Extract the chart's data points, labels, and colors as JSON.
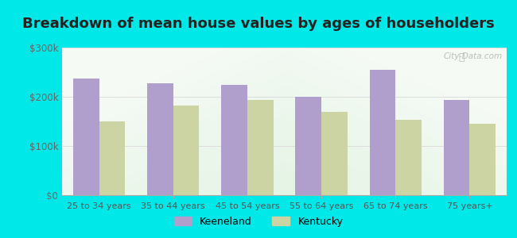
{
  "title": "Breakdown of mean house values by ages of householders",
  "categories": [
    "25 to 34 years",
    "35 to 44 years",
    "45 to 54 years",
    "55 to 64 years",
    "65 to 74 years",
    "75 years+"
  ],
  "keeneland_values": [
    237000,
    228000,
    224000,
    200000,
    255000,
    193000
  ],
  "kentucky_values": [
    150000,
    183000,
    194000,
    170000,
    153000,
    145000
  ],
  "keeneland_color": "#b09fcc",
  "kentucky_color": "#cdd4a4",
  "background_top": "#f0f5ee",
  "background_bottom": "#e8f2e0",
  "outer_background": "#00e8e8",
  "ylim": [
    0,
    300000
  ],
  "yticks": [
    0,
    100000,
    200000,
    300000
  ],
  "ytick_labels": [
    "$0",
    "$100k",
    "$200k",
    "$300k"
  ],
  "title_fontsize": 13,
  "legend_labels": [
    "Keeneland",
    "Kentucky"
  ],
  "bar_width": 0.35,
  "watermark": "City-Data.com"
}
